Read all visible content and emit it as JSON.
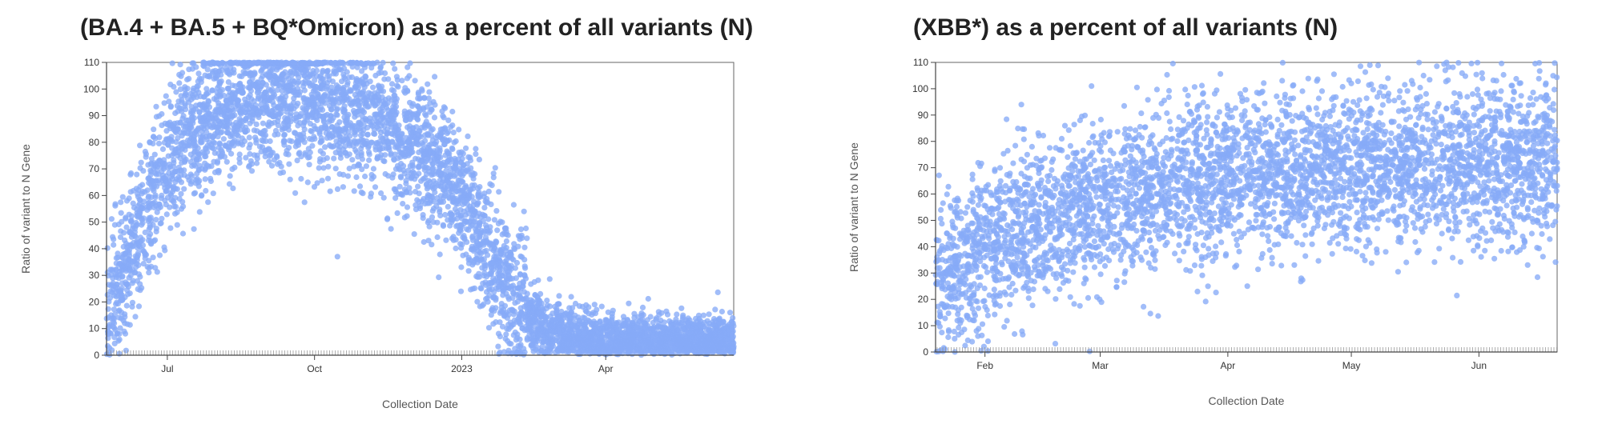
{
  "chart_data": [
    {
      "type": "scatter",
      "title": "(BA.4 + BA.5 + BQ*Omicron) as a percent of all variants (N)",
      "xlabel": "Collection Date",
      "ylabel": "Ratio of variant to N Gene",
      "ylim": [
        0,
        110
      ],
      "xlim": [
        "2022-05-24",
        "2023-06-20"
      ],
      "x_ticks": [
        {
          "date": "2022-07-01",
          "label": "Jul"
        },
        {
          "date": "2022-10-01",
          "label": "Oct"
        },
        {
          "date": "2023-01-01",
          "label": "2023"
        },
        {
          "date": "2023-04-01",
          "label": "Apr"
        }
      ],
      "y_ticks": [
        0,
        10,
        20,
        30,
        40,
        50,
        60,
        70,
        80,
        90,
        100,
        110
      ],
      "grid": false,
      "marker_color": "#86aaf7",
      "rug_color": "#999999",
      "series": [
        {
          "trend": [
            {
              "date": "2022-05-24",
              "value": 18
            },
            {
              "date": "2022-06-01",
              "value": 25
            },
            {
              "date": "2022-06-10",
              "value": 42
            },
            {
              "date": "2022-06-20",
              "value": 60
            },
            {
              "date": "2022-07-01",
              "value": 72
            },
            {
              "date": "2022-07-15",
              "value": 83
            },
            {
              "date": "2022-08-01",
              "value": 92
            },
            {
              "date": "2022-09-01",
              "value": 98
            },
            {
              "date": "2022-10-01",
              "value": 96
            },
            {
              "date": "2022-11-01",
              "value": 90
            },
            {
              "date": "2022-12-01",
              "value": 80
            },
            {
              "date": "2023-01-01",
              "value": 60
            },
            {
              "date": "2023-01-15",
              "value": 42
            },
            {
              "date": "2023-02-01",
              "value": 22
            },
            {
              "date": "2023-02-15",
              "value": 12
            },
            {
              "date": "2023-03-01",
              "value": 8
            },
            {
              "date": "2023-04-01",
              "value": 5
            },
            {
              "date": "2023-05-01",
              "value": 4
            },
            {
              "date": "2023-06-20",
              "value": 3
            }
          ]
        }
      ]
    },
    {
      "type": "scatter",
      "title": "(XBB*) as a percent of all variants (N)",
      "xlabel": "Collection Date",
      "ylabel": "Ratio of variant to N Gene",
      "ylim": [
        0,
        110
      ],
      "xlim": [
        "2023-01-20",
        "2023-06-20"
      ],
      "x_ticks": [
        {
          "date": "2023-02-01",
          "label": "Feb"
        },
        {
          "date": "2023-03-01",
          "label": "Mar"
        },
        {
          "date": "2023-04-01",
          "label": "Apr"
        },
        {
          "date": "2023-05-01",
          "label": "May"
        },
        {
          "date": "2023-06-01",
          "label": "Jun"
        }
      ],
      "y_ticks": [
        0,
        10,
        20,
        30,
        40,
        50,
        60,
        70,
        80,
        90,
        100,
        110
      ],
      "grid": false,
      "marker_color": "#86aaf7",
      "rug_color": "#999999",
      "series": [
        {
          "trend": [
            {
              "date": "2023-01-20",
              "value": 28
            },
            {
              "date": "2023-02-01",
              "value": 38
            },
            {
              "date": "2023-02-10",
              "value": 48
            },
            {
              "date": "2023-02-25",
              "value": 56
            },
            {
              "date": "2023-03-15",
              "value": 63
            },
            {
              "date": "2023-04-01",
              "value": 66
            },
            {
              "date": "2023-05-01",
              "value": 70
            },
            {
              "date": "2023-06-01",
              "value": 72
            },
            {
              "date": "2023-06-20",
              "value": 72
            }
          ]
        }
      ]
    }
  ]
}
